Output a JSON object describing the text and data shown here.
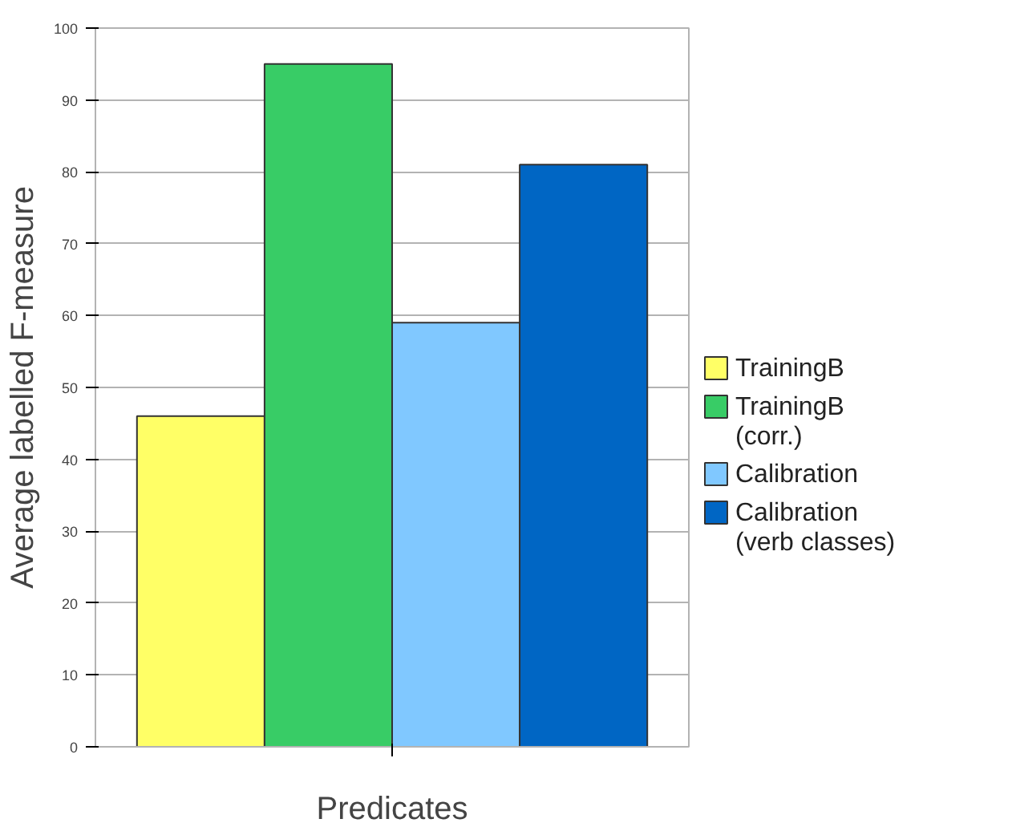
{
  "chart_data": {
    "type": "bar",
    "ylabel": "Average labelled F-measure",
    "categories": [
      "Predicates"
    ],
    "series": [
      {
        "name": "TrainingB",
        "color": "#ffff66",
        "values": [
          46
        ]
      },
      {
        "name": " TrainingB\n(corr.)",
        "color": "#38cc66",
        "values": [
          95
        ]
      },
      {
        "name": "Calibration",
        "color": "#80c8ff",
        "values": [
          59
        ]
      },
      {
        "name": "Calibration\n(verb classes)",
        "color": "#0066c4",
        "values": [
          81
        ]
      }
    ],
    "ylim": [
      0,
      100
    ],
    "yticks": [
      0,
      10,
      20,
      30,
      40,
      50,
      60,
      70,
      80,
      90,
      100
    ],
    "grid": "y",
    "legend": "right"
  }
}
